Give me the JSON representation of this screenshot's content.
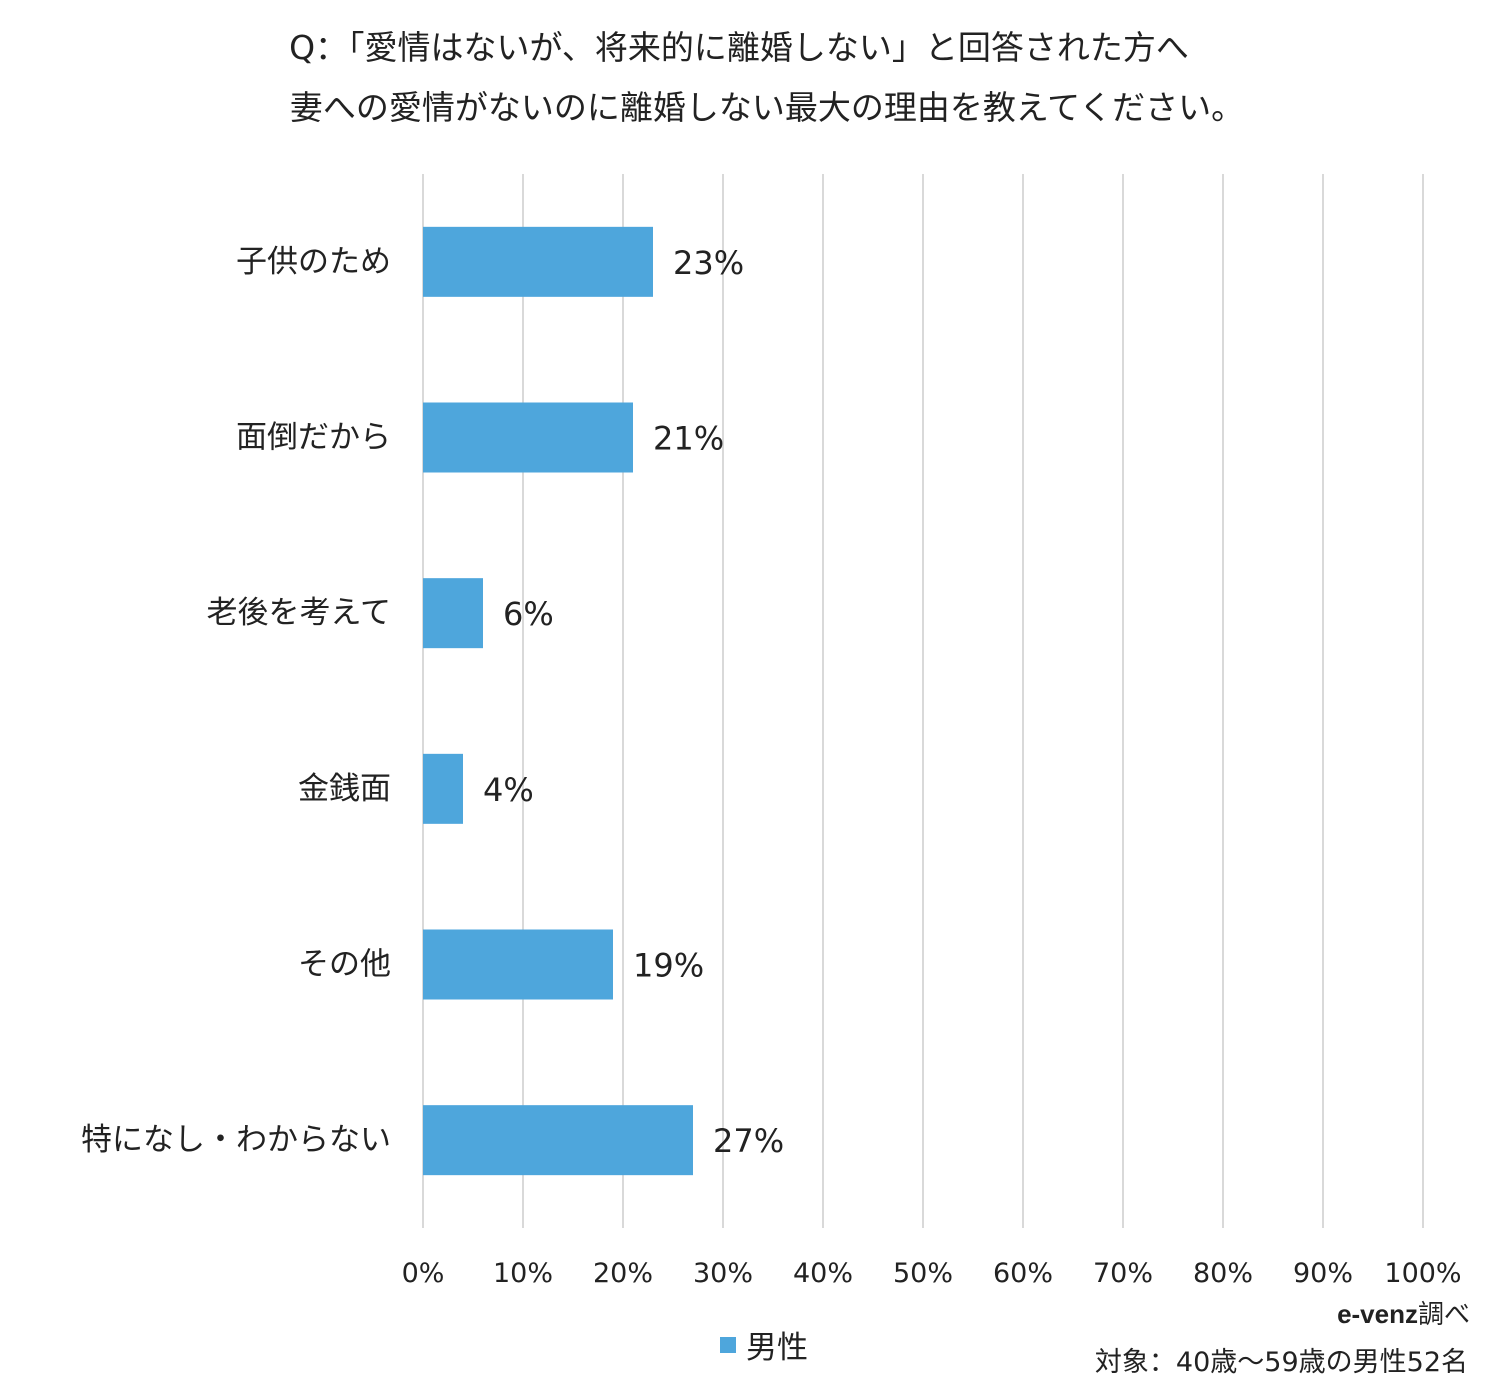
{
  "title_line1": "Q：「愛情はないが、将来的に離婚しない」と回答された方へ",
  "title_line2": "妻への愛情がないのに離婚しない最大の理由を教えてください。",
  "legend": {
    "label": "男性",
    "color": "#4ea6dc"
  },
  "source": {
    "org": "e-venz",
    "suffix": "調べ"
  },
  "target_note": "対象：40歳〜59歳の男性52名",
  "chart_data": {
    "type": "bar",
    "orientation": "horizontal",
    "categories": [
      "子供のため",
      "面倒だから",
      "老後を考えて",
      "金銭面",
      "その他",
      "特になし・わからない"
    ],
    "series": [
      {
        "name": "男性",
        "values": [
          23,
          21,
          6,
          4,
          19,
          27
        ],
        "color": "#4ea6dc"
      }
    ],
    "data_labels": [
      "23%",
      "21%",
      "6%",
      "4%",
      "19%",
      "27%"
    ],
    "xlim": [
      0,
      100
    ],
    "x_ticks": [
      "0%",
      "10%",
      "20%",
      "30%",
      "40%",
      "50%",
      "60%",
      "70%",
      "80%",
      "90%",
      "100%"
    ],
    "grid": "vertical",
    "legend_position": "bottom-center"
  }
}
